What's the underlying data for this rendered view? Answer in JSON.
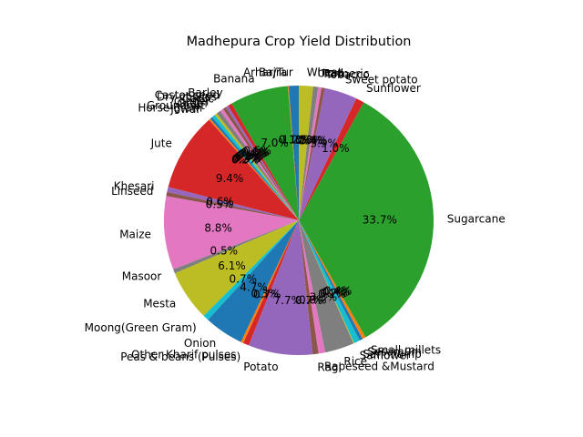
{
  "chart_data": {
    "type": "pie",
    "title": "Madhepura Crop Yield Distribution",
    "start_angle_deg": 90,
    "direction": "counterclockwise",
    "autopct_format": "%.1f%%",
    "slices": [
      {
        "label": "Arhar/Tur",
        "value": 1.2,
        "color": "#1f77b4"
      },
      {
        "label": "Bajra",
        "value": 0.1,
        "color": "#ff7f0e"
      },
      {
        "label": "Banana",
        "value": 7.0,
        "color": "#2ca02c"
      },
      {
        "label": "Barley",
        "value": 0.5,
        "color": "#d62728"
      },
      {
        "label": "Castor seed",
        "value": 0.3,
        "color": "#9467bd"
      },
      {
        "label": "Dry chillies",
        "value": 0.4,
        "color": "#8c564b"
      },
      {
        "label": "Garlic",
        "value": 0.4,
        "color": "#e377c2"
      },
      {
        "label": "Ginger",
        "value": 0.5,
        "color": "#7f7f7f"
      },
      {
        "label": "Gram",
        "value": 0.3,
        "color": "#bcbd22"
      },
      {
        "label": "Groundnut",
        "value": 0.4,
        "color": "#17becf"
      },
      {
        "label": "Horse-gram",
        "value": 0.3,
        "color": "#1f77b4"
      },
      {
        "label": "Jowar",
        "value": 0.2,
        "color": "#ff7f0e"
      },
      {
        "label": "Jute",
        "value": 9.4,
        "color": "#d62728"
      },
      {
        "label": "Khesari",
        "value": 0.6,
        "color": "#9467bd"
      },
      {
        "label": "Linseed",
        "value": 0.5,
        "color": "#8c564b"
      },
      {
        "label": "Maize",
        "value": 8.8,
        "color": "#e377c2"
      },
      {
        "label": "Masoor",
        "value": 0.5,
        "color": "#7f7f7f"
      },
      {
        "label": "Mesta",
        "value": 6.1,
        "color": "#bcbd22"
      },
      {
        "label": "Moong(Green Gram)",
        "value": 0.7,
        "color": "#17becf"
      },
      {
        "label": "Onion",
        "value": 4.7,
        "color": "#1f77b4"
      },
      {
        "label": "Other Kharif pulses",
        "value": 0.3,
        "color": "#ff7f0e"
      },
      {
        "label": "Peas & beans (Pulses)",
        "value": 0.7,
        "color": "#d62728"
      },
      {
        "label": "Potato",
        "value": 7.7,
        "color": "#9467bd"
      },
      {
        "label": "Ragi",
        "value": 0.7,
        "color": "#8c564b"
      },
      {
        "label": "Rapeseed &Mustard",
        "value": 0.8,
        "color": "#e377c2"
      },
      {
        "label": "Rice",
        "value": 3.5,
        "color": "#7f7f7f"
      },
      {
        "label": "Safflower",
        "value": 0.1,
        "color": "#bcbd22"
      },
      {
        "label": "Sannhamp",
        "value": 0.7,
        "color": "#17becf"
      },
      {
        "label": "Sesamum",
        "value": 0.4,
        "color": "#1f77b4"
      },
      {
        "label": "Small millets",
        "value": 0.4,
        "color": "#ff7f0e"
      },
      {
        "label": "Sugarcane",
        "value": 33.7,
        "color": "#2ca02c"
      },
      {
        "label": "Sunflower",
        "value": 1.0,
        "color": "#d62728"
      },
      {
        "label": "Sweet potato",
        "value": 3.9,
        "color": "#9467bd"
      },
      {
        "label": "Tobacco",
        "value": 0.4,
        "color": "#8c564b"
      },
      {
        "label": "Turmeric",
        "value": 0.4,
        "color": "#e377c2"
      },
      {
        "label": "Urad",
        "value": 0.6,
        "color": "#7f7f7f"
      },
      {
        "label": "Wheat",
        "value": 1.7,
        "color": "#bcbd22"
      }
    ]
  }
}
